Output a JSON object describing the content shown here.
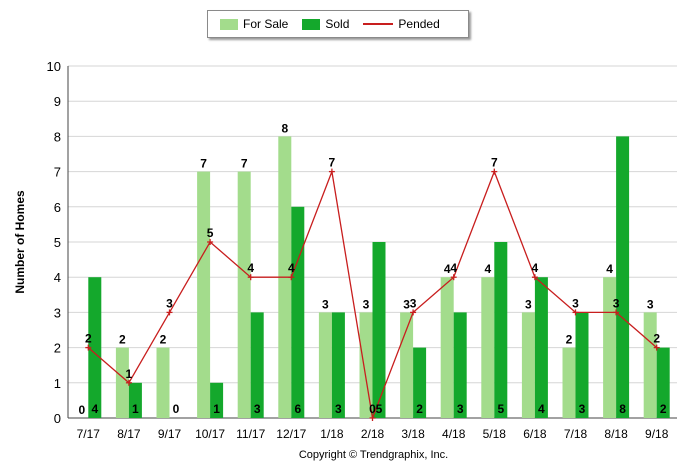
{
  "legend": {
    "for_sale": "For Sale",
    "sold": "Sold",
    "pended": "Pended"
  },
  "ylabel": "Number of Homes",
  "copyright": "Copyright © Trendgraphix, Inc.",
  "colors": {
    "for_sale": "#a3dc8c",
    "sold": "#14a82c",
    "pended": "#c81e1e"
  },
  "chart_data": {
    "type": "bar",
    "categories": [
      "7/17",
      "8/17",
      "9/17",
      "10/17",
      "11/17",
      "12/17",
      "1/18",
      "2/18",
      "3/18",
      "4/18",
      "5/18",
      "6/18",
      "7/18",
      "8/18",
      "9/18"
    ],
    "series": [
      {
        "name": "For Sale",
        "type": "bar",
        "values": [
          0,
          2,
          2,
          7,
          7,
          8,
          3,
          3,
          3,
          4,
          4,
          3,
          2,
          4,
          3
        ]
      },
      {
        "name": "Sold",
        "type": "bar",
        "values": [
          4,
          1,
          0,
          1,
          3,
          6,
          3,
          5,
          2,
          3,
          5,
          4,
          3,
          8,
          2
        ]
      },
      {
        "name": "Pended",
        "type": "line",
        "values": [
          2,
          1,
          3,
          5,
          4,
          4,
          7,
          0,
          3,
          4,
          7,
          4,
          3,
          3,
          2
        ]
      }
    ],
    "ylabel": "Number of Homes",
    "xlabel": "",
    "ylim": [
      0,
      10
    ],
    "yticks": [
      0,
      1,
      2,
      3,
      4,
      5,
      6,
      7,
      8,
      9,
      10
    ],
    "grid": true,
    "legend_position": "top"
  }
}
